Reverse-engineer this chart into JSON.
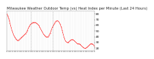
{
  "title": "Milwaukee Weather Outdoor Temp (vs) Heat Index per Minute (Last 24 Hours)",
  "title_fontsize": 3.8,
  "background_color": "#ffffff",
  "plot_bg_color": "#ffffff",
  "line_color": "#ff0000",
  "grid_color": "#bbbbbb",
  "vline_color": "#999999",
  "vline_positions": [
    0.27,
    0.52
  ],
  "y_values": [
    80,
    78,
    75,
    72,
    68,
    64,
    60,
    56,
    52,
    49,
    46,
    43,
    41,
    39,
    37,
    36,
    35,
    34,
    34,
    34,
    35,
    36,
    37,
    38,
    39,
    40,
    41,
    42,
    43,
    44,
    45,
    46,
    48,
    50,
    52,
    55,
    57,
    59,
    61,
    62,
    63,
    64,
    65,
    65,
    65,
    65,
    65,
    65,
    64,
    63,
    62,
    61,
    60,
    58,
    56,
    54,
    52,
    50,
    48,
    46,
    44,
    43,
    42,
    41,
    40,
    40,
    40,
    40,
    41,
    43,
    45,
    47,
    50,
    53,
    56,
    58,
    60,
    62,
    64,
    66,
    67,
    68,
    68,
    68,
    67,
    66,
    64,
    62,
    59,
    56,
    52,
    48,
    44,
    40,
    37,
    34,
    32,
    31,
    30,
    30,
    30,
    31,
    32,
    33,
    34,
    35,
    35,
    35,
    35,
    34,
    33,
    32,
    31,
    30,
    29,
    28,
    28,
    28,
    28,
    27,
    26,
    25,
    24,
    23,
    22,
    21,
    20,
    20,
    20,
    20,
    21,
    22,
    23,
    24,
    25,
    26,
    27,
    28,
    28,
    28,
    27,
    26,
    25,
    23
  ],
  "ylim": [
    15,
    85
  ],
  "yticks": [
    20,
    30,
    40,
    50,
    60,
    70,
    80
  ],
  "ytick_labels": [
    "20",
    "30",
    "40",
    "50",
    "60",
    "70",
    "80"
  ],
  "ytick_fontsize": 3.2,
  "xtick_fontsize": 2.8,
  "markersize": 0.8,
  "linewidth": 0.35
}
